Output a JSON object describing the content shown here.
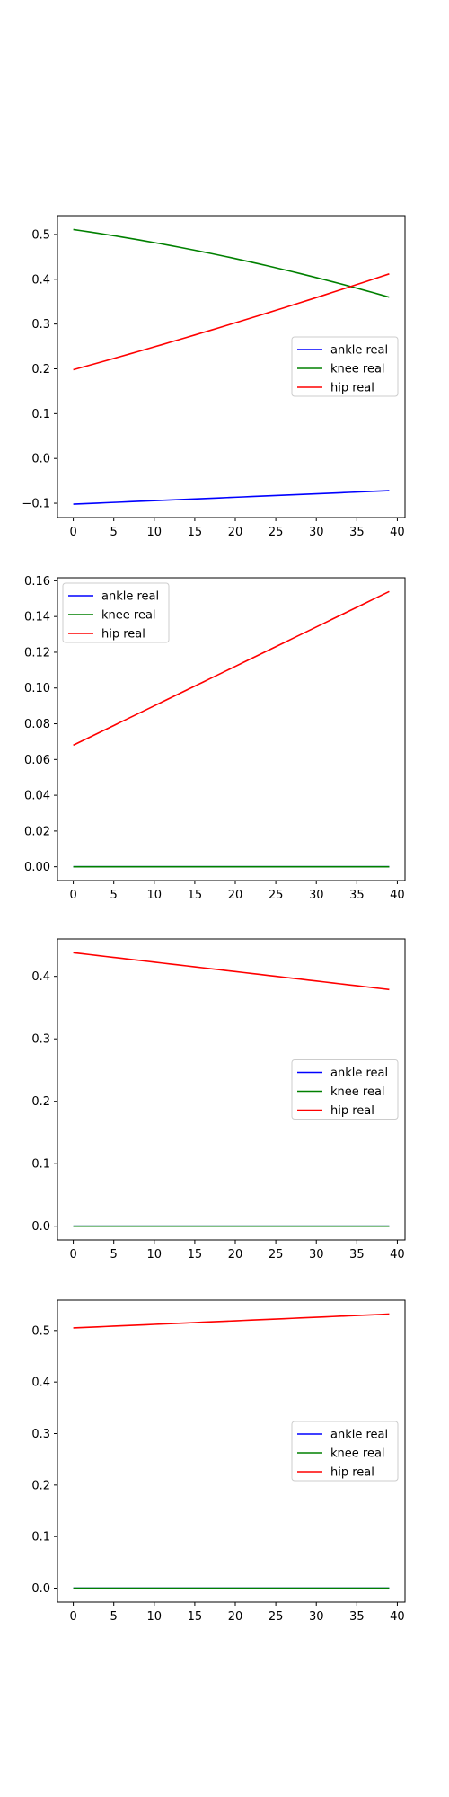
{
  "chart_data": [
    {
      "type": "line",
      "x": {
        "start": 0,
        "end": 39,
        "step": 1
      },
      "xlim": [
        -1.95,
        40.95
      ],
      "xticks": [
        0,
        5,
        10,
        15,
        20,
        25,
        30,
        35,
        40
      ],
      "ylim": [
        -0.132,
        0.542
      ],
      "yticks": [
        -0.1,
        0.0,
        0.1,
        0.2,
        0.3,
        0.4,
        0.5
      ],
      "yticklabels": [
        "−0.1",
        "0.0",
        "0.1",
        "0.2",
        "0.3",
        "0.4",
        "0.5"
      ],
      "legend_position": "center-right",
      "series": [
        {
          "name": "ankle real",
          "color": "#0000ff",
          "y_start": -0.102,
          "y_end": -0.072,
          "curve": 0.0
        },
        {
          "name": "knee real",
          "color": "#008000",
          "y_start": 0.511,
          "y_end": 0.36,
          "curve": -0.05
        },
        {
          "name": "hip real",
          "color": "#ff0000",
          "y_start": 0.198,
          "y_end": 0.412,
          "curve": 0.02
        }
      ]
    },
    {
      "type": "line",
      "x": {
        "start": 0,
        "end": 39,
        "step": 1
      },
      "xlim": [
        -1.95,
        40.95
      ],
      "xticks": [
        0,
        5,
        10,
        15,
        20,
        25,
        30,
        35,
        40
      ],
      "ylim": [
        -0.0077,
        0.1617
      ],
      "yticks": [
        0.0,
        0.02,
        0.04,
        0.06,
        0.08,
        0.1,
        0.12,
        0.14,
        0.16
      ],
      "yticklabels": [
        "0.00",
        "0.02",
        "0.04",
        "0.06",
        "0.08",
        "0.10",
        "0.12",
        "0.14",
        "0.16"
      ],
      "legend_position": "upper-left",
      "series": [
        {
          "name": "ankle real",
          "color": "#0000ff",
          "y_start": 0.0,
          "y_end": 0.0,
          "curve": 0.0
        },
        {
          "name": "knee real",
          "color": "#008000",
          "y_start": 0.0,
          "y_end": 0.0,
          "curve": 0.0
        },
        {
          "name": "hip real",
          "color": "#ff0000",
          "y_start": 0.068,
          "y_end": 0.154,
          "curve": 0.0
        }
      ]
    },
    {
      "type": "line",
      "x": {
        "start": 0,
        "end": 39,
        "step": 1
      },
      "xlim": [
        -1.95,
        40.95
      ],
      "xticks": [
        0,
        5,
        10,
        15,
        20,
        25,
        30,
        35,
        40
      ],
      "ylim": [
        -0.022,
        0.46
      ],
      "yticks": [
        0.0,
        0.1,
        0.2,
        0.3,
        0.4
      ],
      "yticklabels": [
        "0.0",
        "0.1",
        "0.2",
        "0.3",
        "0.4"
      ],
      "legend_position": "center-right",
      "series": [
        {
          "name": "ankle real",
          "color": "#0000ff",
          "y_start": 0.0,
          "y_end": 0.0,
          "curve": 0.0
        },
        {
          "name": "knee real",
          "color": "#008000",
          "y_start": 0.0,
          "y_end": 0.0,
          "curve": 0.0
        },
        {
          "name": "hip real",
          "color": "#ff0000",
          "y_start": 0.438,
          "y_end": 0.379,
          "curve": 0.0
        }
      ]
    },
    {
      "type": "line",
      "x": {
        "start": 0,
        "end": 39,
        "step": 1
      },
      "xlim": [
        -1.95,
        40.95
      ],
      "xticks": [
        0,
        5,
        10,
        15,
        20,
        25,
        30,
        35,
        40
      ],
      "ylim": [
        -0.027,
        0.559
      ],
      "yticks": [
        0.0,
        0.1,
        0.2,
        0.3,
        0.4,
        0.5
      ],
      "yticklabels": [
        "0.0",
        "0.1",
        "0.2",
        "0.3",
        "0.4",
        "0.5"
      ],
      "legend_position": "center-right",
      "series": [
        {
          "name": "ankle real",
          "color": "#0000ff",
          "y_start": 0.0,
          "y_end": 0.0,
          "curve": 0.0
        },
        {
          "name": "knee real",
          "color": "#008000",
          "y_start": 0.0,
          "y_end": 0.0,
          "curve": 0.0
        },
        {
          "name": "hip real",
          "color": "#ff0000",
          "y_start": 0.505,
          "y_end": 0.532,
          "curve": 0.0
        }
      ]
    }
  ]
}
